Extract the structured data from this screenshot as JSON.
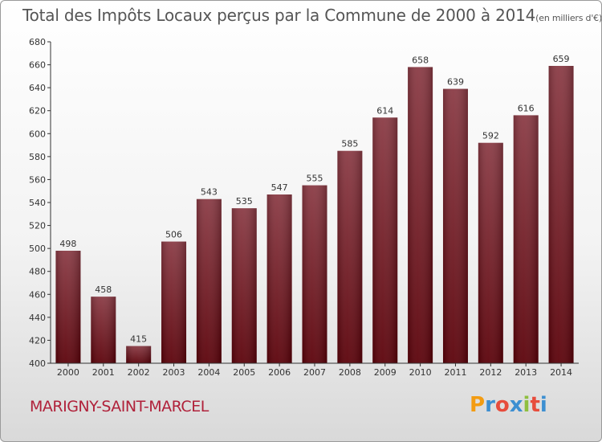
{
  "title": "Total des Impôts Locaux perçus par la Commune de 2000 à 2014",
  "title_unit": "(en milliers d'€)",
  "commune": "MARIGNY-SAINT-MARCEL",
  "logo": {
    "letters": [
      "P",
      "r",
      "o",
      "x",
      "i",
      "t",
      "i"
    ],
    "colors": [
      "#f39c12",
      "#3d8fd1",
      "#e74c3c",
      "#3d8fd1",
      "#8fbf3f",
      "#e74c3c",
      "#3d8fd1"
    ]
  },
  "colors": {
    "bar_top": "#8a3a44",
    "bar_bottom": "#5a0008",
    "title": "#555555",
    "commune": "#b0213a"
  },
  "chart_data": {
    "type": "bar",
    "title": "Total des Impôts Locaux perçus par la Commune de 2000 à 2014",
    "subtitle": "(en milliers d'€)",
    "categories": [
      "2000",
      "2001",
      "2002",
      "2003",
      "2004",
      "2005",
      "2006",
      "2007",
      "2008",
      "2009",
      "2010",
      "2011",
      "2012",
      "2013",
      "2014"
    ],
    "values": [
      498,
      458,
      415,
      506,
      543,
      535,
      547,
      555,
      585,
      614,
      658,
      639,
      592,
      616,
      659
    ],
    "value_labels": [
      "498",
      "458",
      "415",
      "506",
      "543",
      "535",
      "547",
      "555",
      "585",
      "614",
      "658",
      "639",
      "592",
      "616",
      "659"
    ],
    "y_ticks": [
      "400",
      "420",
      "440",
      "460",
      "480",
      "500",
      "520",
      "540",
      "560",
      "580",
      "600",
      "620",
      "640",
      "660",
      "680"
    ],
    "ylim": [
      400,
      680
    ],
    "xlabel": "",
    "ylabel": "",
    "grid": "none",
    "legend": "none"
  }
}
